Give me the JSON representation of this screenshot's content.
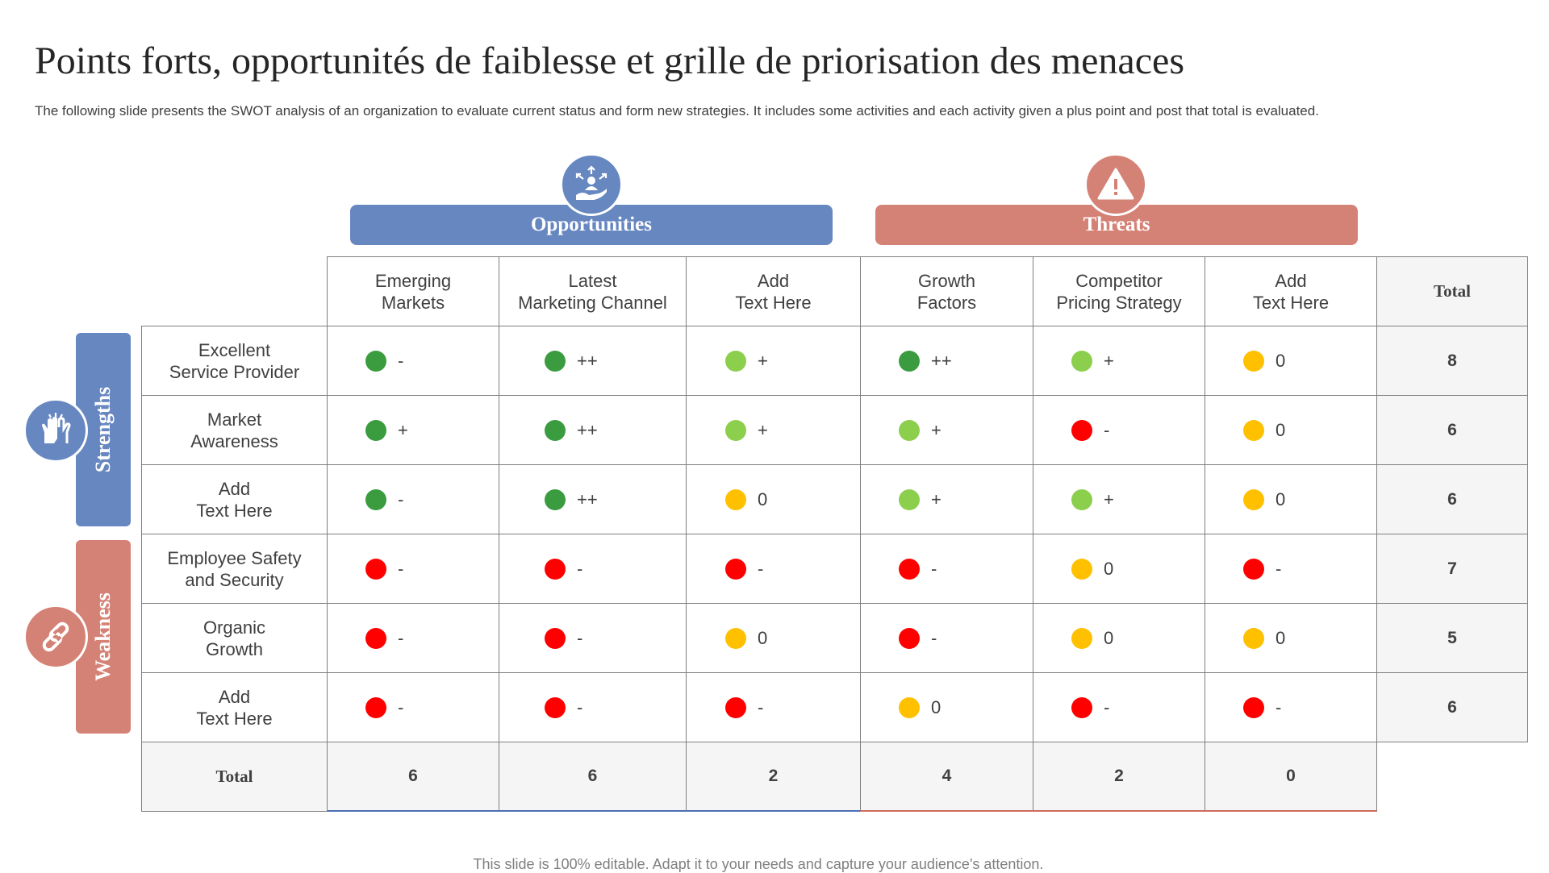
{
  "title": "Points forts, opportunités de faiblesse et grille de priorisation des menaces",
  "subtitle": "The following slide presents the SWOT analysis of an organization to evaluate current status and form new strategies. It includes some activities and each activity given a plus point and post that total is evaluated.",
  "footer": "This slide is 100% editable. Adapt it to your needs and capture your audience's attention.",
  "groups": {
    "opportunities": {
      "label": "Opportunities",
      "icon": "hand-growth-icon",
      "color": "#6787c1"
    },
    "threats": {
      "label": "Threats",
      "icon": "warning-icon",
      "color": "#d58276"
    },
    "strengths": {
      "label": "Strengths",
      "icon": "raised-hands-icon",
      "color": "#6787c1"
    },
    "weakness": {
      "label": "Weakness",
      "icon": "broken-link-icon",
      "color": "#d58276"
    }
  },
  "status_colors": {
    "dark_green": "#3a9b3f",
    "light_green": "#8ccf4d",
    "yellow": "#ffc000",
    "red": "#ff0000"
  },
  "columns": [
    {
      "line1": "Emerging",
      "line2": "Markets"
    },
    {
      "line1": "Latest",
      "line2": "Marketing Channel"
    },
    {
      "line1": "Add",
      "line2": "Text Here"
    },
    {
      "line1": "Growth",
      "line2": "Factors"
    },
    {
      "line1": "Competitor",
      "line2": "Pricing Strategy"
    },
    {
      "line1": "Add",
      "line2": "Text Here"
    }
  ],
  "total_label": "Total",
  "rows": [
    {
      "line1": "Excellent",
      "line2": "Service Provider",
      "total": "8",
      "cells": [
        {
          "color": "dark_green",
          "symbol": "-"
        },
        {
          "color": "dark_green",
          "symbol": "++"
        },
        {
          "color": "light_green",
          "symbol": "+"
        },
        {
          "color": "dark_green",
          "symbol": "++"
        },
        {
          "color": "light_green",
          "symbol": "+"
        },
        {
          "color": "yellow",
          "symbol": "0"
        }
      ]
    },
    {
      "line1": "Market",
      "line2": "Awareness",
      "total": "6",
      "cells": [
        {
          "color": "dark_green",
          "symbol": "+"
        },
        {
          "color": "dark_green",
          "symbol": "++"
        },
        {
          "color": "light_green",
          "symbol": "+"
        },
        {
          "color": "light_green",
          "symbol": "+"
        },
        {
          "color": "red",
          "symbol": "-"
        },
        {
          "color": "yellow",
          "symbol": "0"
        }
      ]
    },
    {
      "line1": "Add",
      "line2": "Text Here",
      "total": "6",
      "cells": [
        {
          "color": "dark_green",
          "symbol": "-"
        },
        {
          "color": "dark_green",
          "symbol": "++"
        },
        {
          "color": "yellow",
          "symbol": "0"
        },
        {
          "color": "light_green",
          "symbol": "+"
        },
        {
          "color": "light_green",
          "symbol": "+"
        },
        {
          "color": "yellow",
          "symbol": "0"
        }
      ]
    },
    {
      "line1": "Employee Safety",
      "line2": "and Security",
      "total": "7",
      "cells": [
        {
          "color": "red",
          "symbol": "-"
        },
        {
          "color": "red",
          "symbol": "-"
        },
        {
          "color": "red",
          "symbol": "-"
        },
        {
          "color": "red",
          "symbol": "-"
        },
        {
          "color": "yellow",
          "symbol": "0"
        },
        {
          "color": "red",
          "symbol": "-"
        }
      ]
    },
    {
      "line1": "Organic",
      "line2": "Growth",
      "total": "5",
      "cells": [
        {
          "color": "red",
          "symbol": "-"
        },
        {
          "color": "red",
          "symbol": "-"
        },
        {
          "color": "yellow",
          "symbol": "0"
        },
        {
          "color": "red",
          "symbol": "-"
        },
        {
          "color": "yellow",
          "symbol": "0"
        },
        {
          "color": "yellow",
          "symbol": "0"
        }
      ]
    },
    {
      "line1": "Add",
      "line2": "Text Here",
      "total": "6",
      "cells": [
        {
          "color": "red",
          "symbol": "-"
        },
        {
          "color": "red",
          "symbol": "-"
        },
        {
          "color": "red",
          "symbol": "-"
        },
        {
          "color": "yellow",
          "symbol": "0"
        },
        {
          "color": "red",
          "symbol": "-"
        },
        {
          "color": "red",
          "symbol": "-"
        }
      ]
    }
  ],
  "column_totals": [
    "6",
    "6",
    "2",
    "4",
    "2",
    "0"
  ]
}
